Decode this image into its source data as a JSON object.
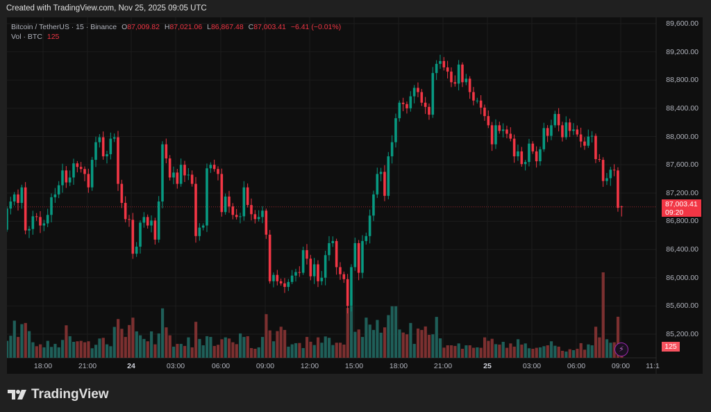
{
  "credit": "Created with TradingView.com, Nov 25, 2025 09:05 UTC",
  "legend": {
    "symbol": "Bitcoin / TetherUS · 15 · Binance",
    "o_label": "O",
    "o": "87,009.82",
    "h_label": "H",
    "h": "87,021.06",
    "l_label": "L",
    "l": "86,867.48",
    "c_label": "C",
    "c": "87,003.41",
    "change": "−6.41 (−0.01%)",
    "vol_label": "Vol · BTC",
    "vol": "125"
  },
  "price_label": {
    "price": "87,003.41",
    "countdown": "09:20"
  },
  "volume_label": "125",
  "brand": "TradingView",
  "colors": {
    "up": "#089981",
    "down": "#f23645",
    "vol_up": "#1f5f59",
    "vol_down": "#7c3030",
    "background": "#0f0f0f"
  },
  "chart_data": {
    "type": "candlestick",
    "interval": "15",
    "y_ticks": [
      "89,600.00",
      "89,200.00",
      "88,800.00",
      "88,400.00",
      "88,000.00",
      "87,600.00",
      "87,200.00",
      "86,800.00",
      "86,400.00",
      "86,000.00",
      "85,600.00",
      "85,200.00"
    ],
    "ylim": [
      85200,
      89600
    ],
    "x_ticks": [
      {
        "label": "18:00",
        "bold": false
      },
      {
        "label": "21:00",
        "bold": false
      },
      {
        "label": "24",
        "bold": true
      },
      {
        "label": "03:00",
        "bold": false
      },
      {
        "label": "06:00",
        "bold": false
      },
      {
        "label": "09:00",
        "bold": false
      },
      {
        "label": "12:00",
        "bold": false
      },
      {
        "label": "15:00",
        "bold": false
      },
      {
        "label": "18:00",
        "bold": false
      },
      {
        "label": "21:00",
        "bold": false
      },
      {
        "label": "25",
        "bold": true
      },
      {
        "label": "03:00",
        "bold": false
      },
      {
        "label": "06:00",
        "bold": false
      },
      {
        "label": "09:00",
        "bold": false
      },
      {
        "label": "11:1",
        "bold": false
      }
    ],
    "first_open": 86680,
    "last": {
      "o": 87009.82,
      "h": 87021.06,
      "l": 86867.48,
      "c": 87003.41,
      "v": 125
    },
    "close": [
      86980,
      87080,
      87180,
      87060,
      87280,
      86670,
      86690,
      86870,
      86860,
      86740,
      86770,
      86890,
      87140,
      87180,
      87310,
      87520,
      87350,
      87420,
      87620,
      87570,
      87540,
      87470,
      87280,
      87670,
      87920,
      87990,
      87720,
      87750,
      87970,
      87990,
      87330,
      87060,
      86830,
      86820,
      86340,
      86440,
      86780,
      86860,
      86740,
      86810,
      86540,
      87080,
      87890,
      87690,
      87420,
      87490,
      87330,
      87600,
      87450,
      87460,
      87330,
      86590,
      86710,
      86740,
      87550,
      87600,
      87540,
      87470,
      86930,
      87150,
      87010,
      86890,
      86860,
      86870,
      87280,
      87030,
      86900,
      86830,
      86860,
      86950,
      86610,
      85950,
      86040,
      85950,
      85920,
      85870,
      85940,
      86030,
      86080,
      86070,
      86390,
      86270,
      86020,
      86190,
      85950,
      86000,
      86320,
      86490,
      86520,
      86150,
      86050,
      85980,
      85600,
      86150,
      86490,
      86070,
      86520,
      86590,
      86880,
      87180,
      87470,
      87500,
      87160,
      87720,
      87920,
      88260,
      88480,
      88460,
      88400,
      88570,
      88690,
      88630,
      88480,
      88420,
      88310,
      88900,
      89030,
      89070,
      88980,
      88920,
      88770,
      88750,
      89020,
      88770,
      88820,
      88630,
      88510,
      88510,
      88410,
      88290,
      88160,
      87890,
      88160,
      88080,
      88100,
      88040,
      87970,
      87720,
      87790,
      87610,
      87640,
      87900,
      87790,
      87650,
      87820,
      88120,
      88010,
      88160,
      88320,
      88160,
      87990,
      88200,
      88080,
      88100,
      88030,
      87930,
      87870,
      88000,
      88010,
      87680,
      87670,
      87370,
      87410,
      87530,
      87520,
      86990,
      87003.41
    ],
    "volume": [
      190,
      247,
      416,
      234,
      377,
      390,
      299,
      174,
      130,
      151,
      117,
      190,
      122,
      156,
      117,
      200,
      364,
      242,
      179,
      185,
      190,
      174,
      185,
      107,
      146,
      216,
      224,
      151,
      130,
      346,
      434,
      325,
      234,
      367,
      450,
      296,
      252,
      211,
      185,
      296,
      151,
      273,
      554,
      341,
      252,
      125,
      156,
      156,
      133,
      229,
      117,
      403,
      211,
      140,
      242,
      234,
      133,
      146,
      208,
      229,
      216,
      174,
      153,
      273,
      234,
      242,
      109,
      101,
      117,
      234,
      489,
      307,
      185,
      299,
      348,
      312,
      125,
      151,
      164,
      166,
      109,
      234,
      180,
      143,
      229,
      169,
      239,
      224,
      143,
      169,
      169,
      148,
      559,
      577,
      291,
      317,
      234,
      450,
      372,
      312,
      424,
      281,
      341,
      478,
      577,
      577,
      317,
      283,
      263,
      390,
      156,
      328,
      312,
      351,
      257,
      263,
      458,
      218,
      114,
      140,
      140,
      133,
      161,
      101,
      140,
      140,
      112,
      117,
      112,
      229,
      190,
      213,
      153,
      148,
      179,
      112,
      161,
      125,
      208,
      148,
      161,
      107,
      101,
      112,
      117,
      130,
      140,
      185,
      135,
      125,
      78,
      70,
      96,
      86,
      101,
      164,
      91,
      150,
      140,
      348,
      229,
      957,
      208,
      169,
      174,
      460,
      125
    ]
  }
}
